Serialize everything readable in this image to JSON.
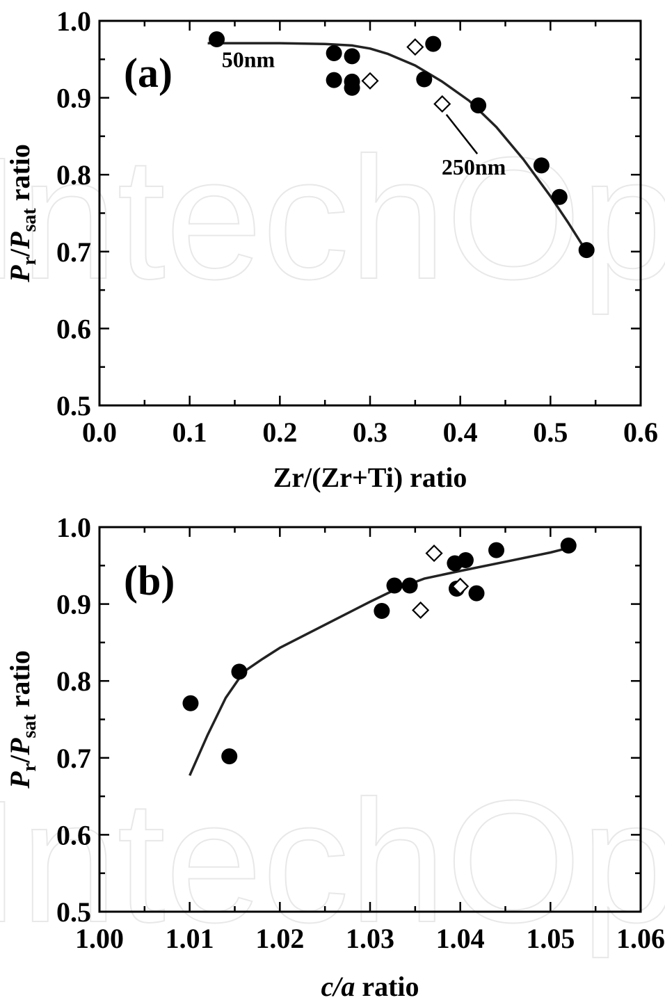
{
  "watermark": "IntechOpen",
  "chart_data": [
    {
      "type": "scatter",
      "panel_label": "(a)",
      "xlabel": "Zr/(Zr+Ti) ratio",
      "ylabel": {
        "p1": "P",
        "s1": "r",
        "mid": "/",
        "p2": "P",
        "s2": "sat",
        "tail": " ratio"
      },
      "xlim": [
        0.0,
        0.6
      ],
      "ylim": [
        0.5,
        1.0
      ],
      "xticks": [
        "0.0",
        "0.1",
        "0.2",
        "0.3",
        "0.4",
        "0.5",
        "0.6"
      ],
      "xtick_values": [
        0.0,
        0.1,
        0.2,
        0.3,
        0.4,
        0.5,
        0.6
      ],
      "yticks": [
        "0.5",
        "0.6",
        "0.7",
        "0.8",
        "0.9",
        "1.0"
      ],
      "ytick_values": [
        0.5,
        0.6,
        0.7,
        0.8,
        0.9,
        1.0
      ],
      "series": [
        {
          "marker": "filled-circle",
          "points": [
            [
              0.13,
              0.976
            ],
            [
              0.26,
              0.958
            ],
            [
              0.26,
              0.923
            ],
            [
              0.28,
              0.954
            ],
            [
              0.28,
              0.921
            ],
            [
              0.28,
              0.913
            ],
            [
              0.36,
              0.924
            ],
            [
              0.37,
              0.97
            ],
            [
              0.42,
              0.89
            ],
            [
              0.49,
              0.812
            ],
            [
              0.51,
              0.771
            ],
            [
              0.54,
              0.702
            ]
          ]
        },
        {
          "marker": "open-diamond",
          "points": [
            [
              0.3,
              0.922
            ],
            [
              0.35,
              0.966
            ],
            [
              0.38,
              0.892
            ]
          ]
        }
      ],
      "fit_curve": [
        [
          0.12,
          0.971
        ],
        [
          0.2,
          0.971
        ],
        [
          0.25,
          0.97
        ],
        [
          0.28,
          0.968
        ],
        [
          0.3,
          0.964
        ],
        [
          0.32,
          0.957
        ],
        [
          0.35,
          0.942
        ],
        [
          0.38,
          0.921
        ],
        [
          0.41,
          0.896
        ],
        [
          0.44,
          0.862
        ],
        [
          0.47,
          0.82
        ],
        [
          0.5,
          0.772
        ],
        [
          0.52,
          0.737
        ],
        [
          0.54,
          0.7
        ]
      ],
      "annotations": [
        {
          "text": "50nm",
          "x": 0.165,
          "y": 0.94
        },
        {
          "text": "250nm",
          "x": 0.415,
          "y": 0.8,
          "arrow_to": [
            0.38,
            0.889
          ]
        }
      ]
    },
    {
      "type": "scatter",
      "panel_label": "(b)",
      "xlabel": {
        "italic": "c/a",
        "tail": " ratio"
      },
      "ylabel": {
        "p1": "P",
        "s1": "r",
        "mid": "/",
        "p2": "P",
        "s2": "sat",
        "tail": " ratio"
      },
      "xlim": [
        1.0,
        1.06
      ],
      "ylim": [
        0.5,
        1.0
      ],
      "xticks": [
        "1.00",
        "1.01",
        "1.02",
        "1.03",
        "1.04",
        "1.05",
        "1.06"
      ],
      "xtick_values": [
        1.0,
        1.01,
        1.02,
        1.03,
        1.04,
        1.05,
        1.06
      ],
      "yticks": [
        "0.5",
        "0.6",
        "0.7",
        "0.8",
        "0.9",
        "1.0"
      ],
      "ytick_values": [
        0.5,
        0.6,
        0.7,
        0.8,
        0.9,
        1.0
      ],
      "series": [
        {
          "marker": "filled-circle",
          "points": [
            [
              1.0101,
              0.771
            ],
            [
              1.0144,
              0.702
            ],
            [
              1.0155,
              0.812
            ],
            [
              1.0313,
              0.891
            ],
            [
              1.0327,
              0.924
            ],
            [
              1.0344,
              0.924
            ],
            [
              1.0394,
              0.953
            ],
            [
              1.0396,
              0.92
            ],
            [
              1.0406,
              0.957
            ],
            [
              1.0418,
              0.914
            ],
            [
              1.044,
              0.97
            ],
            [
              1.052,
              0.976
            ]
          ]
        },
        {
          "marker": "open-diamond",
          "points": [
            [
              1.0356,
              0.892
            ],
            [
              1.0371,
              0.966
            ],
            [
              1.04,
              0.923
            ]
          ]
        }
      ],
      "fit_curve": [
        [
          1.01,
          0.677
        ],
        [
          1.012,
          0.73
        ],
        [
          1.014,
          0.778
        ],
        [
          1.016,
          0.812
        ],
        [
          1.018,
          0.828
        ],
        [
          1.02,
          0.843
        ],
        [
          1.023,
          0.861
        ],
        [
          1.026,
          0.879
        ],
        [
          1.03,
          0.903
        ],
        [
          1.033,
          0.92
        ],
        [
          1.036,
          0.933
        ],
        [
          1.04,
          0.943
        ],
        [
          1.045,
          0.955
        ],
        [
          1.05,
          0.967
        ],
        [
          1.052,
          0.973
        ]
      ],
      "annotations": []
    }
  ]
}
